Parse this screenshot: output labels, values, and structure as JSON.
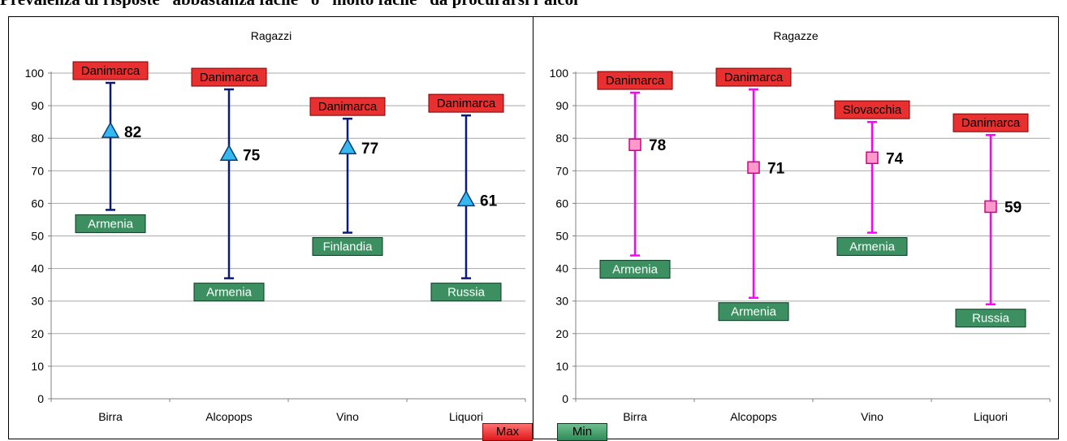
{
  "page": {
    "heading": "Prevalenza di risposte “abbastanza facile” o “molto facile” da procurarsi l’alcol"
  },
  "legend": {
    "max_label": "Max",
    "min_label": "Min"
  },
  "colors": {
    "ragazzi_line": "#0a1a7a",
    "ragazzi_marker": "#33b8f0",
    "ragazze_line": "#ff00ff",
    "ragazze_marker": "#ff99cc",
    "max_box": "#e83030",
    "min_box": "#3c8f60"
  },
  "chart_data": [
    {
      "type": "scatter",
      "title": "Ragazzi",
      "categories": [
        "Birra",
        "Alcopops",
        "Vino",
        "Liquori"
      ],
      "ylim": [
        0,
        100
      ],
      "yticks": [
        0,
        10,
        20,
        30,
        40,
        50,
        60,
        70,
        80,
        90,
        100
      ],
      "grid": true,
      "marker": "triangle",
      "values": [
        82,
        75,
        77,
        61
      ],
      "max": [
        97,
        95,
        86,
        87
      ],
      "min": [
        58,
        37,
        51,
        37
      ],
      "max_labels": [
        "Danimarca",
        "Danimarca",
        "Danimarca",
        "Danimarca"
      ],
      "min_labels": [
        "Armenia",
        "Armenia",
        "Finlandia",
        "Russia"
      ]
    },
    {
      "type": "scatter",
      "title": "Ragazze",
      "categories": [
        "Birra",
        "Alcopops",
        "Vino",
        "Liquori"
      ],
      "ylim": [
        0,
        100
      ],
      "yticks": [
        0,
        10,
        20,
        30,
        40,
        50,
        60,
        70,
        80,
        90,
        100
      ],
      "grid": true,
      "marker": "square",
      "values": [
        78,
        71,
        74,
        59
      ],
      "max": [
        94,
        95,
        85,
        81
      ],
      "min": [
        44,
        31,
        51,
        29
      ],
      "max_labels": [
        "Danimarca",
        "Danimarca",
        "Slovacchia",
        "Danimarca"
      ],
      "min_labels": [
        "Armenia",
        "Armenia",
        "Armenia",
        "Russia"
      ]
    }
  ]
}
